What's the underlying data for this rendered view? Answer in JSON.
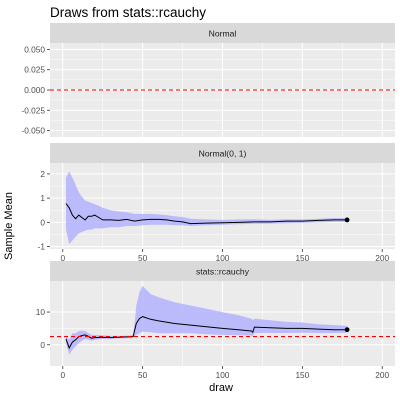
{
  "chart_data": {
    "type": "line",
    "title": "Draws from stats::rcauchy",
    "xlabel": "draw",
    "ylabel": "Sample Mean",
    "xlim": [
      -8,
      208
    ],
    "x_ticks": [
      0,
      50,
      100,
      150,
      200
    ],
    "grid": true,
    "colors": {
      "panel_bg": "#ebebeb",
      "strip_bg": "#d9d9d9",
      "grid": "#ffffff",
      "ribbon": "#b3b3ff",
      "line": "#000000",
      "reference_line": "#ff0000"
    },
    "panels": [
      {
        "label": "Normal",
        "ylim": [
          -0.058,
          0.058
        ],
        "y_ticks": [
          -0.05,
          -0.025,
          0.0,
          0.025,
          0.05
        ],
        "y_tick_labels": [
          "-0.050",
          "-0.025",
          "0.000",
          "0.025",
          "0.050"
        ],
        "reference_line": 0.0,
        "series": []
      },
      {
        "label": "Normal(0, 1)",
        "ylim": [
          -1.1,
          2.45
        ],
        "y_ticks": [
          -1,
          0,
          1,
          2
        ],
        "y_tick_labels": [
          "-1",
          "0",
          "1",
          "2"
        ],
        "reference_line": null,
        "series": [
          {
            "x": [
              2,
              4,
              6,
              8,
              10,
              12,
              14,
              16,
              18,
              20,
              22,
              25,
              30,
              35,
              40,
              45,
              50,
              55,
              60,
              65,
              70,
              75,
              80,
              90,
              100,
              110,
              120,
              130,
              140,
              150,
              160,
              170,
              178
            ],
            "mean": [
              0.78,
              0.6,
              0.3,
              0.15,
              0.3,
              0.2,
              0.1,
              0.25,
              0.25,
              0.3,
              0.22,
              0.1,
              0.1,
              0.08,
              0.12,
              0.05,
              0.1,
              0.12,
              0.12,
              0.1,
              0.05,
              0.02,
              -0.05,
              -0.03,
              -0.02,
              0.0,
              0.02,
              0.02,
              0.05,
              0.05,
              0.08,
              0.1,
              0.1
            ],
            "lower": [
              -0.3,
              -0.9,
              -0.75,
              -0.6,
              -0.45,
              -0.4,
              -0.35,
              -0.3,
              -0.3,
              -0.25,
              -0.25,
              -0.25,
              -0.2,
              -0.2,
              -0.15,
              -0.15,
              -0.12,
              -0.1,
              -0.1,
              -0.1,
              -0.12,
              -0.12,
              -0.15,
              -0.12,
              -0.1,
              -0.08,
              -0.06,
              -0.05,
              -0.03,
              -0.02,
              0.0,
              0.02,
              0.02
            ],
            "upper": [
              1.85,
              2.1,
              1.85,
              1.55,
              1.25,
              1.05,
              0.9,
              0.85,
              0.8,
              0.75,
              0.7,
              0.6,
              0.5,
              0.45,
              0.42,
              0.35,
              0.35,
              0.35,
              0.33,
              0.3,
              0.25,
              0.22,
              0.15,
              0.12,
              0.1,
              0.12,
              0.12,
              0.1,
              0.13,
              0.12,
              0.15,
              0.18,
              0.18
            ]
          }
        ],
        "final_point": {
          "x": 178,
          "y": 0.1
        }
      },
      {
        "label": "stats::rcauchy",
        "ylim": [
          -6.5,
          19.5
        ],
        "y_ticks": [
          0,
          10
        ],
        "y_tick_labels": [
          "0",
          "10"
        ],
        "reference_line": 2.5,
        "series": [
          {
            "x": [
              2,
              4,
              6,
              8,
              10,
              12,
              14,
              16,
              18,
              20,
              25,
              30,
              35,
              40,
              44,
              45,
              46,
              48,
              50,
              55,
              60,
              70,
              80,
              90,
              100,
              110,
              118,
              119,
              120,
              130,
              140,
              150,
              160,
              170,
              178
            ],
            "mean": [
              1.8,
              -1.0,
              0.8,
              1.5,
              2.5,
              2.8,
              3.0,
              2.6,
              2.0,
              2.2,
              2.3,
              2.2,
              2.3,
              2.4,
              2.5,
              4.5,
              6.5,
              8.0,
              8.6,
              7.8,
              7.3,
              6.5,
              6.0,
              5.5,
              5.0,
              4.6,
              4.2,
              3.8,
              5.4,
              5.2,
              5.0,
              5.0,
              4.8,
              4.6,
              4.6
            ],
            "lower": [
              0.5,
              -3.0,
              -1.5,
              -0.5,
              0.5,
              1.2,
              1.8,
              1.6,
              1.2,
              1.5,
              1.8,
              1.8,
              2.0,
              2.0,
              2.2,
              2.5,
              3.0,
              3.5,
              4.0,
              3.8,
              3.5,
              3.5,
              3.5,
              3.2,
              3.0,
              2.9,
              2.8,
              2.5,
              3.6,
              3.6,
              3.6,
              3.7,
              3.6,
              3.6,
              3.7
            ],
            "upper": [
              3.0,
              1.5,
              3.5,
              3.5,
              4.2,
              4.3,
              4.2,
              3.6,
              3.0,
              3.0,
              2.9,
              2.7,
              2.7,
              2.8,
              2.9,
              7.0,
              12.0,
              16.0,
              18.0,
              15.5,
              14.5,
              13.0,
              12.0,
              11.0,
              10.0,
              9.0,
              8.0,
              7.5,
              8.0,
              7.5,
              7.0,
              6.8,
              6.3,
              6.0,
              5.8
            ]
          }
        ],
        "final_point": {
          "x": 178,
          "y": 4.6
        }
      }
    ]
  }
}
